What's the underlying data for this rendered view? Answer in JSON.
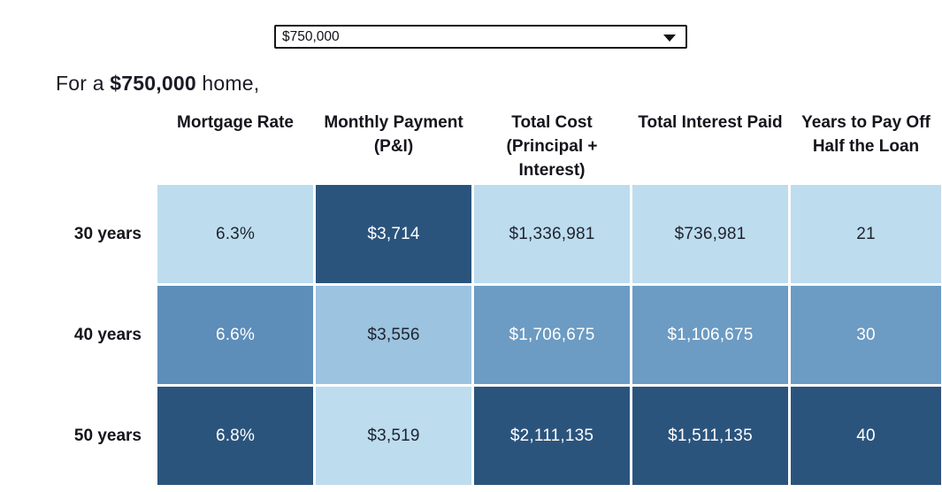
{
  "price_selector": {
    "value": "$750,000"
  },
  "heading": {
    "prefix": "For a ",
    "amount": "$750,000",
    "suffix": " home,"
  },
  "colors": {
    "light_blue": "#BDDCEE",
    "mid_light_blue": "#9CC3DF",
    "medium_blue": "#6C9BC3",
    "medium_dark_blue": "#5D8DB9",
    "dark_blue": "#2B547D",
    "dark_text": "#1E2430",
    "light_text": "#FFFFFF"
  },
  "table": {
    "headers": [
      "Mortgage Rate",
      "Monthly Payment (P&I)",
      "Total Cost (Principal + Interest)",
      "Total Interest Paid",
      "Years to Pay Off Half the Loan"
    ],
    "rows": [
      {
        "label": "30 years",
        "cells": [
          {
            "text": "6.3%",
            "bg": "#BDDCEE",
            "fg": "#1E2430"
          },
          {
            "text": "$3,714",
            "bg": "#2B547D",
            "fg": "#FFFFFF"
          },
          {
            "text": "$1,336,981",
            "bg": "#BDDCEE",
            "fg": "#1E2430"
          },
          {
            "text": "$736,981",
            "bg": "#BDDCEE",
            "fg": "#1E2430"
          },
          {
            "text": "21",
            "bg": "#BDDCEE",
            "fg": "#1E2430"
          }
        ]
      },
      {
        "label": "40 years",
        "cells": [
          {
            "text": "6.6%",
            "bg": "#5D8DB9",
            "fg": "#FFFFFF"
          },
          {
            "text": "$3,556",
            "bg": "#9CC3DF",
            "fg": "#1E2430"
          },
          {
            "text": "$1,706,675",
            "bg": "#6C9BC3",
            "fg": "#FFFFFF"
          },
          {
            "text": "$1,106,675",
            "bg": "#6C9BC3",
            "fg": "#FFFFFF"
          },
          {
            "text": "30",
            "bg": "#6C9BC3",
            "fg": "#FFFFFF"
          }
        ]
      },
      {
        "label": "50 years",
        "cells": [
          {
            "text": "6.8%",
            "bg": "#2B547D",
            "fg": "#FFFFFF"
          },
          {
            "text": "$3,519",
            "bg": "#BDDCEE",
            "fg": "#1E2430"
          },
          {
            "text": "$2,111,135",
            "bg": "#2B547D",
            "fg": "#FFFFFF"
          },
          {
            "text": "$1,511,135",
            "bg": "#2B547D",
            "fg": "#FFFFFF"
          },
          {
            "text": "40",
            "bg": "#2B547D",
            "fg": "#FFFFFF"
          }
        ]
      }
    ]
  }
}
